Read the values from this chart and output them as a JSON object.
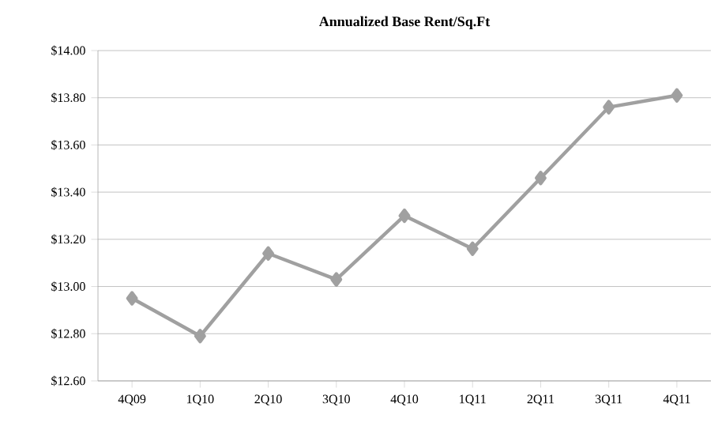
{
  "chart_data": {
    "type": "line",
    "title": "Annualized Base Rent/Sq.Ft",
    "categories": [
      "4Q09",
      "1Q10",
      "2Q10",
      "3Q10",
      "4Q10",
      "1Q11",
      "2Q11",
      "3Q11",
      "4Q11"
    ],
    "values": [
      12.95,
      12.79,
      13.14,
      13.03,
      13.3,
      13.16,
      13.46,
      13.76,
      13.81
    ],
    "color": "#a0a0a0",
    "marker": "diamond",
    "line_style": "solid",
    "grid": "y",
    "ylim": [
      12.6,
      14.0
    ],
    "yticks": [
      {
        "value": 12.6,
        "label": "$12.60"
      },
      {
        "value": 12.8,
        "label": "$12.80"
      },
      {
        "value": 13.0,
        "label": "$13.00"
      },
      {
        "value": 13.2,
        "label": "$13.20"
      },
      {
        "value": 13.4,
        "label": "$13.40"
      },
      {
        "value": 13.6,
        "label": "$13.60"
      },
      {
        "value": 13.8,
        "label": "$13.80"
      },
      {
        "value": 14.0,
        "label": "$14.00"
      }
    ]
  }
}
